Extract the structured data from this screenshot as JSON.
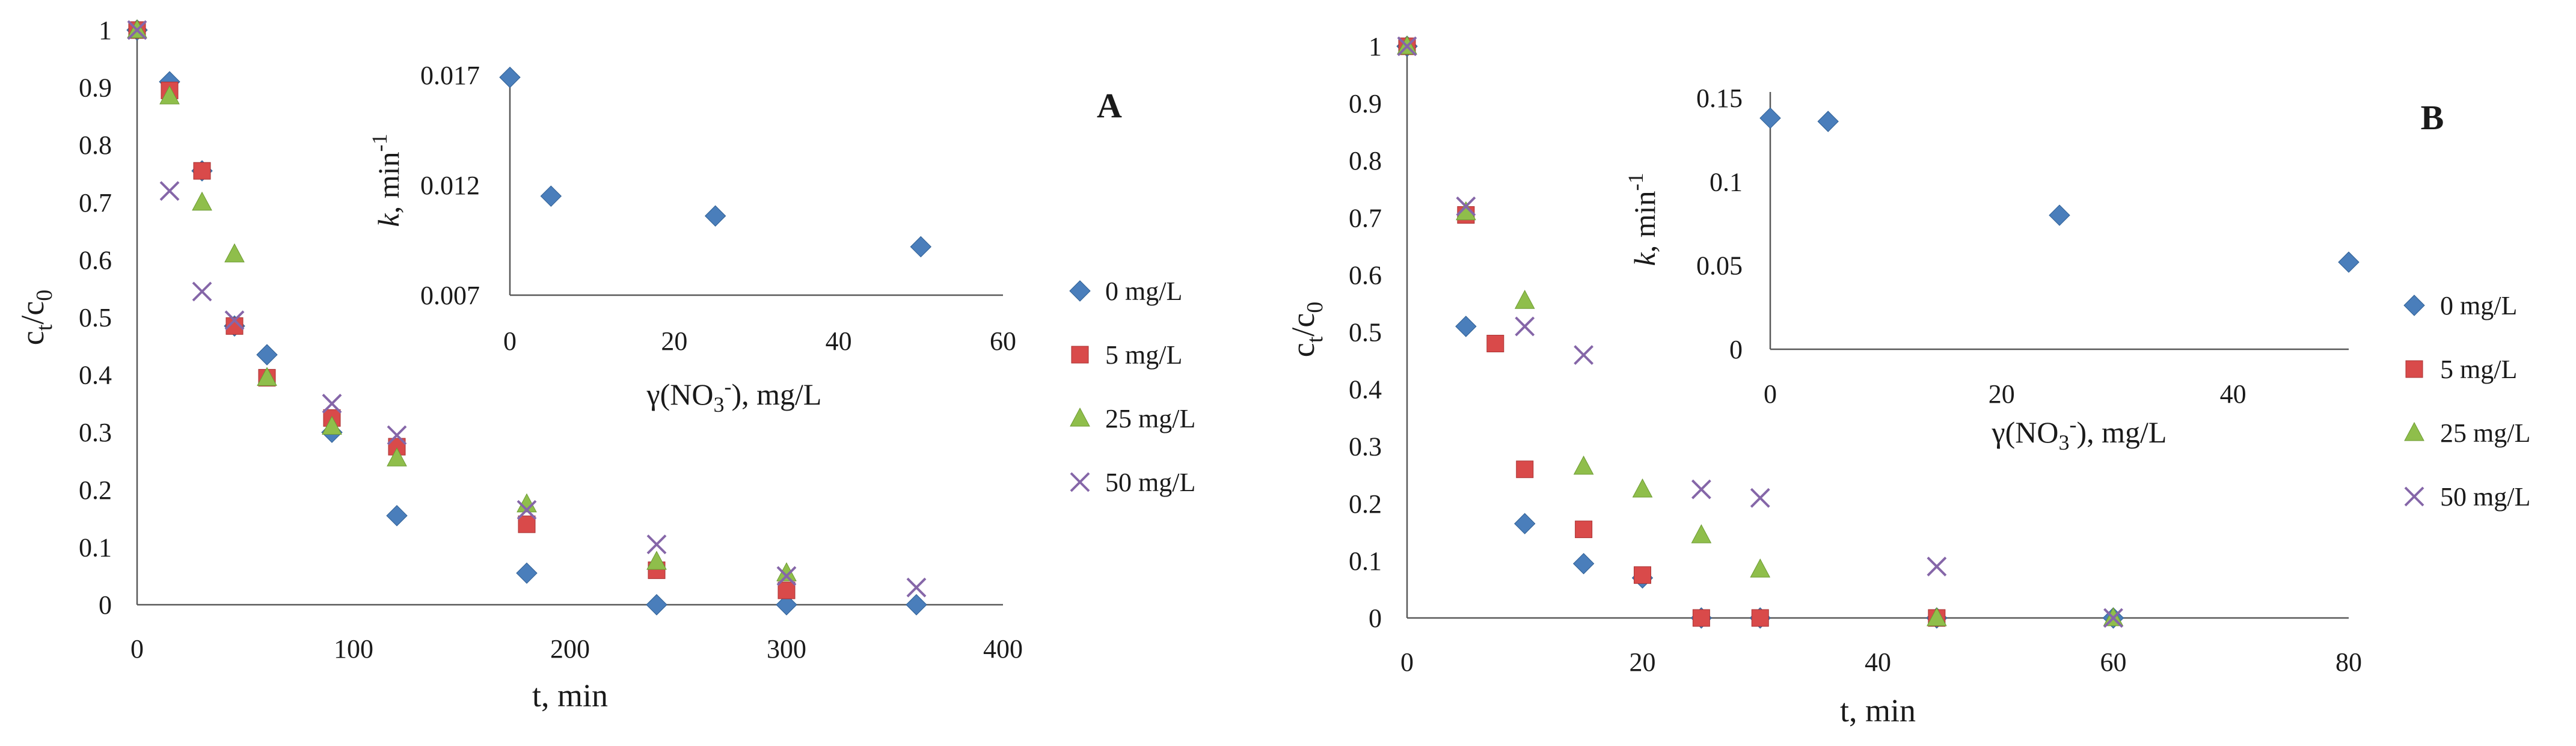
{
  "chart_data": [
    {
      "panel": "A",
      "type": "scatter",
      "label": "A",
      "xlabel": "t, min",
      "ylabel_main": "c",
      "ylabel_sub1": "t",
      "ylabel_slash": "/c",
      "ylabel_sub2": "0",
      "xlim": [
        0,
        400
      ],
      "ylim": [
        0,
        1
      ],
      "x_ticks": [
        "0",
        "100",
        "200",
        "300",
        "400"
      ],
      "y_ticks": [
        "0",
        "0.1",
        "0.2",
        "0.3",
        "0.4",
        "0.5",
        "0.6",
        "0.7",
        "0.8",
        "0.9",
        "1"
      ],
      "legend_position": "right",
      "series": [
        {
          "name": "0 mg/L",
          "marker": "diamond",
          "color": "#4a7ebb",
          "x": [
            0,
            15,
            30,
            45,
            60,
            90,
            120,
            180,
            240,
            300,
            360
          ],
          "y": [
            1.0,
            0.91,
            0.755,
            0.485,
            0.435,
            0.3,
            0.155,
            0.055,
            0.0,
            0.0,
            0.0
          ]
        },
        {
          "name": "5 mg/L",
          "marker": "square",
          "color": "#d94a4a",
          "x": [
            0,
            15,
            30,
            45,
            60,
            90,
            120,
            180,
            240,
            300
          ],
          "y": [
            1.0,
            0.895,
            0.755,
            0.485,
            0.395,
            0.325,
            0.275,
            0.14,
            0.06,
            0.025
          ]
        },
        {
          "name": "25 mg/L",
          "marker": "triangle",
          "color": "#8fbe4b",
          "x": [
            0,
            15,
            30,
            45,
            60,
            90,
            120,
            180,
            240,
            300
          ],
          "y": [
            1.0,
            0.885,
            0.7,
            0.61,
            0.395,
            0.31,
            0.255,
            0.175,
            0.075,
            0.055
          ]
        },
        {
          "name": "50 mg/L",
          "marker": "x",
          "color": "#8566a8",
          "x": [
            0,
            15,
            30,
            45,
            90,
            120,
            180,
            240,
            300,
            360
          ],
          "y": [
            1.0,
            0.72,
            0.545,
            0.495,
            0.35,
            0.295,
            0.165,
            0.105,
            0.05,
            0.03
          ]
        }
      ],
      "inset": {
        "type": "scatter",
        "xlabel": "γ(NO",
        "xlabel_sub": "3",
        "xlabel_sup": "-",
        "xlabel_end": "), mg/L",
        "ylabel_k": "k",
        "ylabel_unit": ", min",
        "ylabel_sup": "-1",
        "xlim": [
          0,
          60
        ],
        "ylim": [
          0.007,
          0.017
        ],
        "x_ticks": [
          "0",
          "20",
          "40",
          "60"
        ],
        "y_ticks": [
          "0.007",
          "0.012",
          "0.017"
        ],
        "color": "#4a7ebb",
        "x": [
          0,
          5,
          25,
          50
        ],
        "y": [
          0.0169,
          0.0115,
          0.0106,
          0.0092
        ]
      }
    },
    {
      "panel": "B",
      "type": "scatter",
      "label": "B",
      "xlabel": "t, min",
      "ylabel_main": "c",
      "ylabel_sub1": "t",
      "ylabel_slash": "/c",
      "ylabel_sub2": "0",
      "xlim": [
        0,
        80
      ],
      "ylim": [
        0,
        1
      ],
      "x_ticks": [
        "0",
        "20",
        "40",
        "60",
        "80"
      ],
      "y_ticks": [
        "0",
        "0.1",
        "0.2",
        "0.3",
        "0.4",
        "0.5",
        "0.6",
        "0.7",
        "0.8",
        "0.9",
        "1"
      ],
      "legend_position": "right",
      "series": [
        {
          "name": "0 mg/L",
          "marker": "diamond",
          "color": "#4a7ebb",
          "x": [
            0,
            5,
            10,
            15,
            20,
            25,
            30,
            45,
            60
          ],
          "y": [
            1.0,
            0.51,
            0.165,
            0.095,
            0.07,
            0.0,
            0.0,
            0.0,
            0.0
          ]
        },
        {
          "name": "5 mg/L",
          "marker": "square",
          "color": "#d94a4a",
          "x": [
            0,
            5,
            7.5,
            10,
            15,
            20,
            25,
            30,
            45
          ],
          "y": [
            1.0,
            0.705,
            0.48,
            0.26,
            0.155,
            0.075,
            0.0,
            0.0,
            0.0
          ]
        },
        {
          "name": "25 mg/L",
          "marker": "triangle",
          "color": "#8fbe4b",
          "x": [
            0,
            5,
            10,
            15,
            20,
            25,
            30,
            45,
            60
          ],
          "y": [
            1.0,
            0.71,
            0.555,
            0.265,
            0.225,
            0.145,
            0.085,
            0.0,
            0.0
          ]
        },
        {
          "name": "50 mg/L",
          "marker": "x",
          "color": "#8566a8",
          "x": [
            0,
            5,
            10,
            15,
            25,
            30,
            45,
            60
          ],
          "y": [
            1.0,
            0.72,
            0.51,
            0.46,
            0.225,
            0.21,
            0.09,
            0.0
          ]
        }
      ],
      "inset": {
        "type": "scatter",
        "xlabel": "γ(NO",
        "xlabel_sub": "3",
        "xlabel_sup": "-",
        "xlabel_end": "), mg/L",
        "ylabel_k": "k",
        "ylabel_unit": ", min",
        "ylabel_sup": "-1",
        "xlim": [
          0,
          50
        ],
        "ylim": [
          0,
          0.15
        ],
        "x_ticks": [
          "0",
          "20",
          "40"
        ],
        "y_ticks": [
          "0",
          "0.05",
          "0.1",
          "0.15"
        ],
        "color": "#4a7ebb",
        "x": [
          0,
          5,
          25,
          50
        ],
        "y": [
          0.138,
          0.136,
          0.08,
          0.052
        ]
      }
    }
  ]
}
